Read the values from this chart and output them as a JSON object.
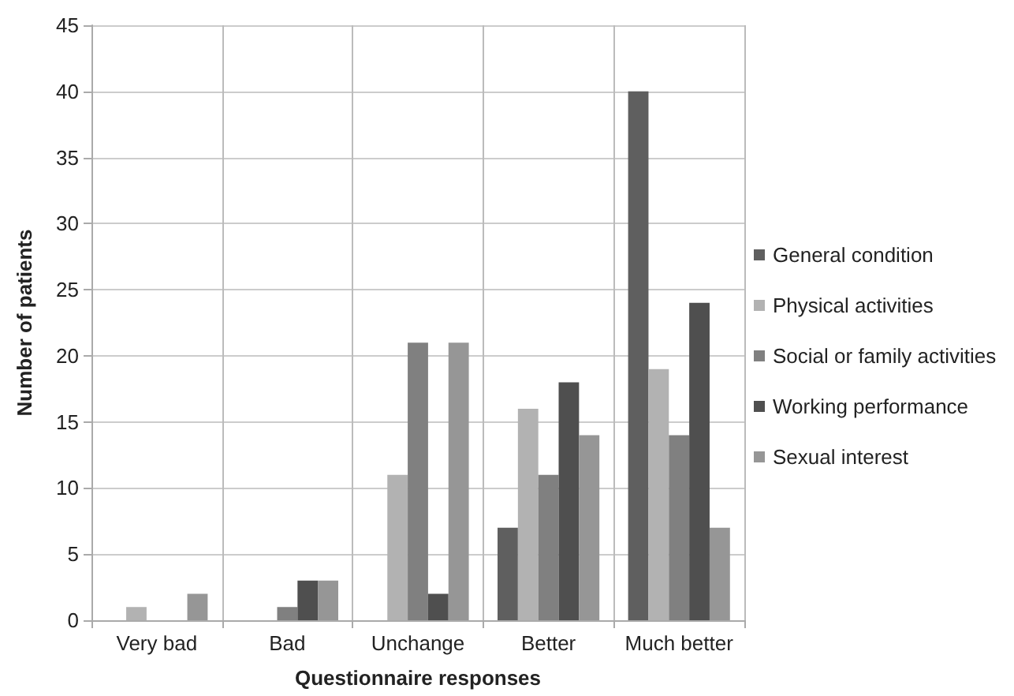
{
  "chart_data": {
    "type": "bar",
    "xlabel": "Questionnaire responses",
    "ylabel": "Number of patients",
    "categories": [
      "Very bad",
      "Bad",
      "Unchange",
      "Better",
      "Much better"
    ],
    "series": [
      {
        "name": "General condition",
        "color": "#5f5f5f",
        "values": [
          0,
          0,
          0,
          7,
          40
        ]
      },
      {
        "name": "Physical activities",
        "color": "#b2b2b2",
        "values": [
          1,
          0,
          11,
          16,
          19
        ]
      },
      {
        "name": "Social or family activities",
        "color": "#808080",
        "values": [
          0,
          1,
          21,
          11,
          14
        ]
      },
      {
        "name": "Working performance",
        "color": "#4f4f4f",
        "values": [
          0,
          3,
          2,
          18,
          24
        ]
      },
      {
        "name": "Sexual interest",
        "color": "#969696",
        "values": [
          2,
          3,
          21,
          14,
          7
        ]
      }
    ],
    "ylim": [
      0,
      45
    ],
    "yticks": [
      0,
      5,
      10,
      15,
      20,
      25,
      30,
      35,
      40,
      45
    ],
    "grid": true,
    "legend": "right"
  }
}
